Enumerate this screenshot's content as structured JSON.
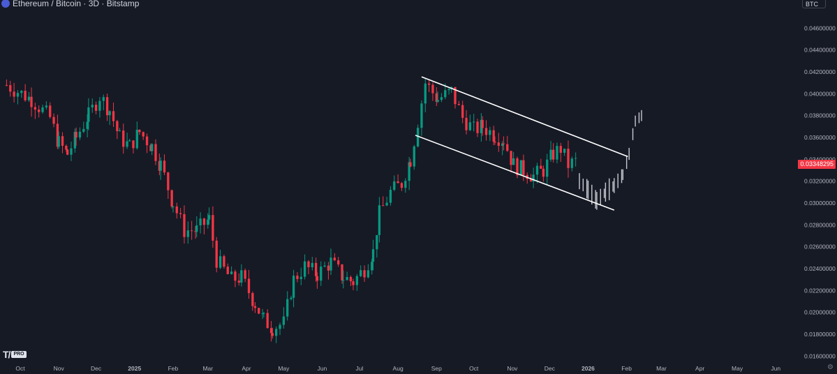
{
  "header": {
    "title": "Ethereum / Bitcoin · 3D · Bitstamp"
  },
  "currency_badge": "BTC",
  "last_price_label": "0.03348295",
  "colors": {
    "background": "#161a25",
    "up": "#089981",
    "down": "#f23645",
    "projection": "#c7c9d0",
    "channel": "#ffffff",
    "axis_text": "#b2b5be"
  },
  "icons": [
    "ethereum-icon",
    "settings-icon",
    "tradingview-logo"
  ],
  "chart_data": {
    "type": "candlestick",
    "title": "Ethereum / Bitcoin · 3D · Bitstamp",
    "y_axis_unit": "BTC",
    "ylim": [
      0.0157,
      0.0473
    ],
    "y_ticks": [
      "0.04600000",
      "0.04400000",
      "0.04200000",
      "0.04000000",
      "0.03800000",
      "0.03600000",
      "0.03400000",
      "0.03200000",
      "0.03000000",
      "0.02800000",
      "0.02600000",
      "0.02400000",
      "0.02200000",
      "0.02000000",
      "0.01800000",
      "0.01600000"
    ],
    "x_ticks": [
      {
        "label": "Oct",
        "date": "2024-10-01"
      },
      {
        "label": "Nov",
        "date": "2024-11-01"
      },
      {
        "label": "Dec",
        "date": "2024-12-01"
      },
      {
        "label": "2025",
        "date": "2025-01-01"
      },
      {
        "label": "Feb",
        "date": "2025-02-01"
      },
      {
        "label": "Mar",
        "date": "2025-03-01"
      },
      {
        "label": "Apr",
        "date": "2025-04-01"
      },
      {
        "label": "May",
        "date": "2025-05-01"
      },
      {
        "label": "Jun",
        "date": "2025-06-01"
      },
      {
        "label": "Jul",
        "date": "2025-07-01"
      },
      {
        "label": "Aug",
        "date": "2025-08-01"
      },
      {
        "label": "Sep",
        "date": "2025-09-01"
      },
      {
        "label": "Oct",
        "date": "2025-10-01"
      },
      {
        "label": "Nov",
        "date": "2025-11-01"
      },
      {
        "label": "Dec",
        "date": "2025-12-01"
      },
      {
        "label": "2026",
        "date": "2026-01-01"
      },
      {
        "label": "Feb",
        "date": "2026-02-01"
      },
      {
        "label": "Mar",
        "date": "2026-03-01"
      },
      {
        "label": "Apr",
        "date": "2026-04-01"
      },
      {
        "label": "May",
        "date": "2026-05-01"
      },
      {
        "label": "Jun",
        "date": "2026-06-01"
      }
    ],
    "candle_days": 3,
    "last_price": 0.03348295,
    "series": [
      {
        "date": "2024-09-20",
        "close": 0.0408
      },
      {
        "date": "2024-10-10",
        "close": 0.0395
      },
      {
        "date": "2024-10-25",
        "close": 0.0378
      },
      {
        "date": "2024-11-01",
        "close": 0.0355
      },
      {
        "date": "2024-11-08",
        "close": 0.0345
      },
      {
        "date": "2024-11-15",
        "close": 0.036
      },
      {
        "date": "2024-11-25",
        "close": 0.038
      },
      {
        "date": "2024-12-04",
        "close": 0.0398
      },
      {
        "date": "2024-12-12",
        "close": 0.0385
      },
      {
        "date": "2024-12-20",
        "close": 0.036
      },
      {
        "date": "2024-12-28",
        "close": 0.0352
      },
      {
        "date": "2025-01-05",
        "close": 0.0365
      },
      {
        "date": "2025-01-15",
        "close": 0.0352
      },
      {
        "date": "2025-01-22",
        "close": 0.0335
      },
      {
        "date": "2025-02-01",
        "close": 0.03
      },
      {
        "date": "2025-02-10",
        "close": 0.0275
      },
      {
        "date": "2025-02-20",
        "close": 0.0275
      },
      {
        "date": "2025-03-02",
        "close": 0.0285
      },
      {
        "date": "2025-03-08",
        "close": 0.0248
      },
      {
        "date": "2025-03-20",
        "close": 0.023
      },
      {
        "date": "2025-03-28",
        "close": 0.0232
      },
      {
        "date": "2025-04-08",
        "close": 0.0208
      },
      {
        "date": "2025-04-15",
        "close": 0.0193
      },
      {
        "date": "2025-04-22",
        "close": 0.0186
      },
      {
        "date": "2025-05-01",
        "close": 0.019
      },
      {
        "date": "2025-05-09",
        "close": 0.023
      },
      {
        "date": "2025-05-18",
        "close": 0.0242
      },
      {
        "date": "2025-05-28",
        "close": 0.0235
      },
      {
        "date": "2025-06-08",
        "close": 0.0246
      },
      {
        "date": "2025-06-18",
        "close": 0.0232
      },
      {
        "date": "2025-06-26",
        "close": 0.0228
      },
      {
        "date": "2025-07-05",
        "close": 0.024
      },
      {
        "date": "2025-07-12",
        "close": 0.0255
      },
      {
        "date": "2025-07-17",
        "close": 0.029
      },
      {
        "date": "2025-07-26",
        "close": 0.031
      },
      {
        "date": "2025-08-04",
        "close": 0.0318
      },
      {
        "date": "2025-08-11",
        "close": 0.034
      },
      {
        "date": "2025-08-17",
        "close": 0.0375
      },
      {
        "date": "2025-08-23",
        "close": 0.041
      },
      {
        "date": "2025-09-02",
        "close": 0.0395
      },
      {
        "date": "2025-09-13",
        "close": 0.0402
      },
      {
        "date": "2025-09-22",
        "close": 0.0378
      },
      {
        "date": "2025-10-01",
        "close": 0.0367
      },
      {
        "date": "2025-10-08",
        "close": 0.037
      },
      {
        "date": "2025-10-18",
        "close": 0.0362
      },
      {
        "date": "2025-10-25",
        "close": 0.0358
      },
      {
        "date": "2025-11-02",
        "close": 0.0335
      },
      {
        "date": "2025-11-10",
        "close": 0.033
      },
      {
        "date": "2025-11-18",
        "close": 0.0325
      },
      {
        "date": "2025-11-26",
        "close": 0.033
      },
      {
        "date": "2025-12-04",
        "close": 0.0345
      },
      {
        "date": "2025-12-10",
        "close": 0.035
      },
      {
        "date": "2025-12-16",
        "close": 0.0335
      },
      {
        "date": "2025-12-22",
        "close": 0.0338
      }
    ],
    "projection": [
      {
        "date": "2025-12-25",
        "close": 0.032
      },
      {
        "date": "2026-01-01",
        "close": 0.0312
      },
      {
        "date": "2026-01-08",
        "close": 0.0302
      },
      {
        "date": "2026-01-15",
        "close": 0.031
      },
      {
        "date": "2026-01-22",
        "close": 0.0316
      },
      {
        "date": "2026-01-29",
        "close": 0.0326
      },
      {
        "date": "2026-02-03",
        "close": 0.0345
      },
      {
        "date": "2026-02-08",
        "close": 0.0375
      },
      {
        "date": "2026-02-13",
        "close": 0.038
      }
    ],
    "channel": {
      "upper": [
        {
          "date": "2025-08-20",
          "price": 0.04155
        },
        {
          "date": "2026-02-02",
          "price": 0.03425
        }
      ],
      "lower": [
        {
          "date": "2025-08-15",
          "price": 0.0362
        },
        {
          "date": "2026-01-22",
          "price": 0.02935
        }
      ]
    },
    "grid": false,
    "legend": "none"
  }
}
